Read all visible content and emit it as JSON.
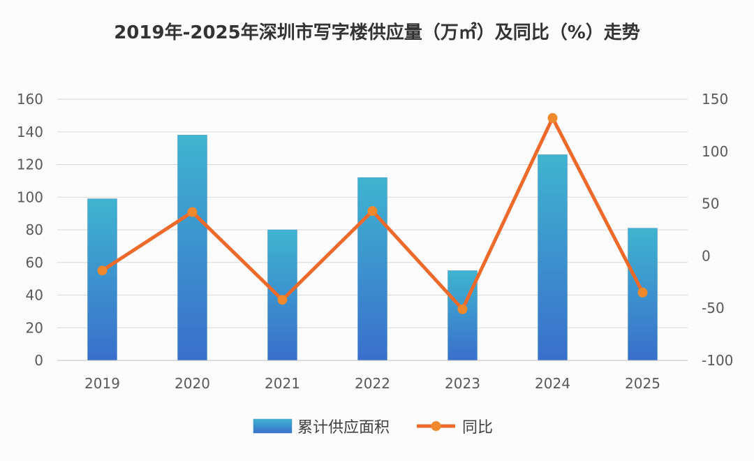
{
  "chart_data": {
    "type": "bar",
    "title": "2019年-2025年深圳市写字楼供应量（万㎡）及同比（%）走势",
    "categories": [
      "2019",
      "2020",
      "2021",
      "2022",
      "2023",
      "2024",
      "2025"
    ],
    "series": [
      {
        "name": "累计供应面积",
        "type": "bar",
        "axis": "left",
        "values": [
          99,
          138,
          80,
          112,
          55,
          126,
          81
        ]
      },
      {
        "name": "同比",
        "type": "line",
        "axis": "right",
        "values": [
          -14,
          42,
          -42,
          43,
          -51,
          132,
          -35
        ]
      }
    ],
    "y_left": {
      "ylim": [
        0,
        160
      ],
      "ticks": [
        "0",
        "20",
        "40",
        "60",
        "80",
        "100",
        "120",
        "140",
        "160"
      ]
    },
    "y_right": {
      "ylim": [
        -100,
        150
      ],
      "ticks": [
        "-100",
        "-50",
        "0",
        "50",
        "100",
        "150"
      ]
    },
    "grid": true,
    "legend": "bottom",
    "colors": {
      "bar_top": "#3fb4cf",
      "bar_bottom": "#3a6fcc",
      "line": "#ed6a2b",
      "marker": "#f0892e",
      "grid": "#d9d9d9"
    }
  }
}
